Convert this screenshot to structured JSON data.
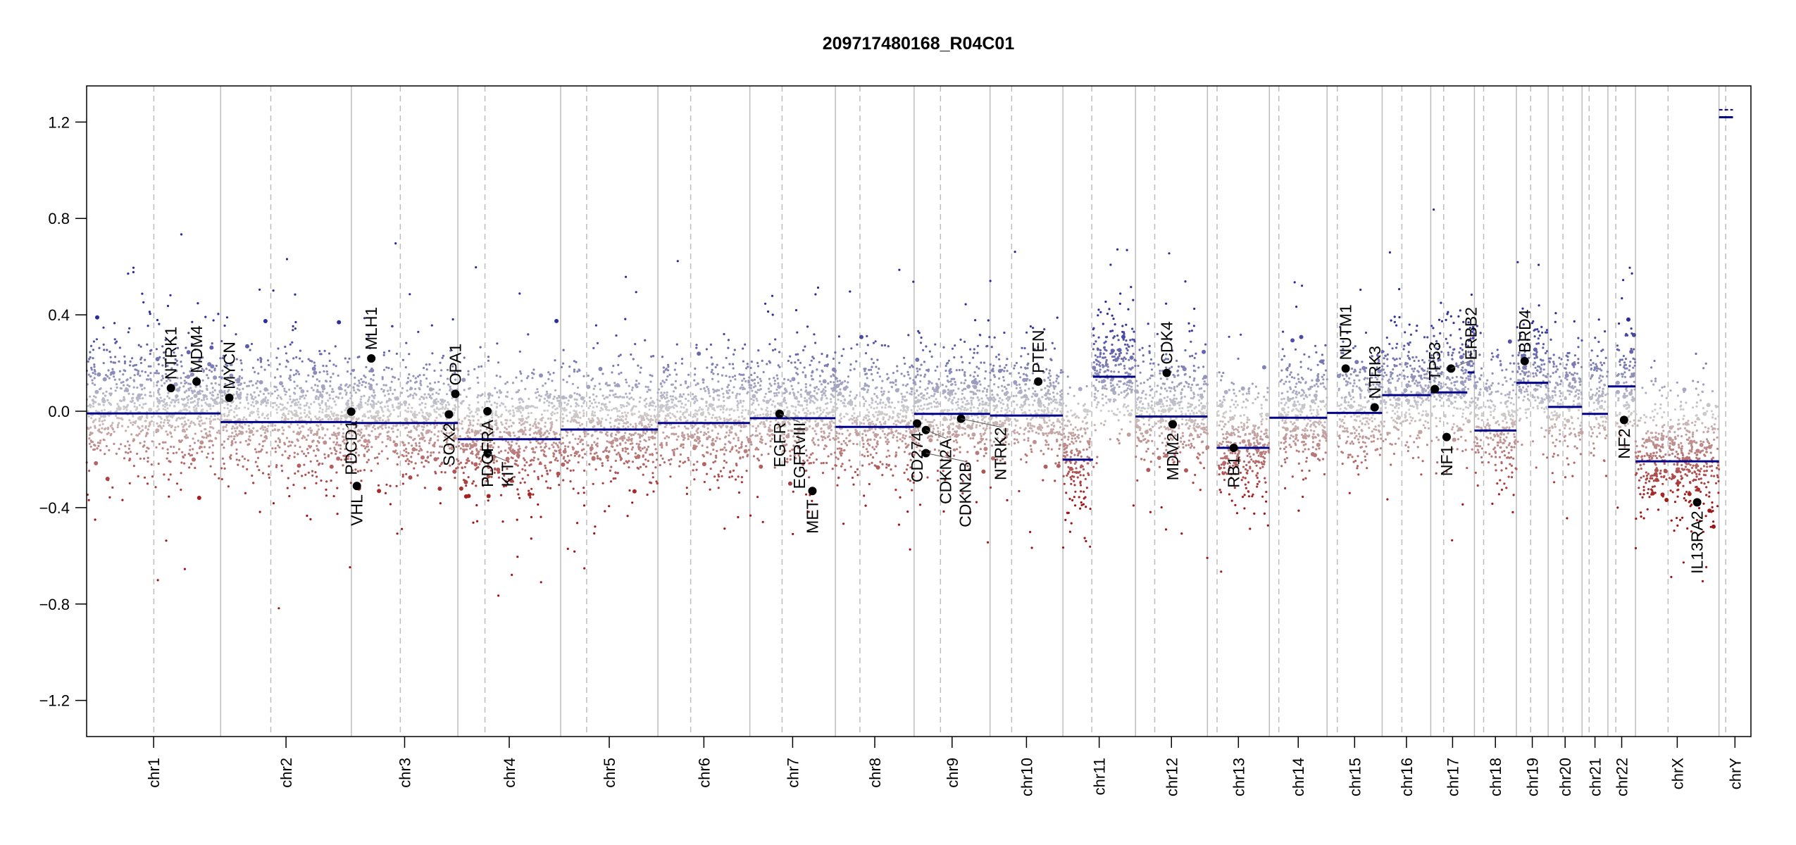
{
  "chart_data": {
    "type": "scatter",
    "title": "209717480168_R04C01",
    "xlabel": "",
    "ylabel": "",
    "ylim": [
      -1.35,
      1.35
    ],
    "y_ticks": [
      {
        "value": -1.2,
        "label": "−1.2"
      },
      {
        "value": -0.8,
        "label": "−0.8"
      },
      {
        "value": -0.4,
        "label": "−0.4"
      },
      {
        "value": 0.0,
        "label": "0.0"
      },
      {
        "value": 0.4,
        "label": "0.4"
      },
      {
        "value": 0.8,
        "label": "0.8"
      },
      {
        "value": 1.2,
        "label": "1.2"
      }
    ],
    "grid": false,
    "colors": {
      "gain": "#2a2a9c",
      "loss": "#a01414",
      "neutral": "#cfcfcf",
      "segment": "#00008b",
      "gene": "#000000",
      "chrom_line": "#bdbdbd",
      "centromere_line": "#bdbdbd"
    },
    "chromosomes": [
      {
        "name": "chr1",
        "length_mb": 249.25,
        "centromere_mb": 125.0,
        "segments": [
          {
            "start": 0,
            "end": 249.25,
            "value": -0.009
          }
        ]
      },
      {
        "name": "chr2",
        "length_mb": 243.2,
        "centromere_mb": 93.3,
        "segments": [
          {
            "start": 0,
            "end": 243.2,
            "value": -0.045
          }
        ]
      },
      {
        "name": "chr3",
        "length_mb": 198.0,
        "centromere_mb": 91.0,
        "segments": [
          {
            "start": 0,
            "end": 198.0,
            "value": -0.049
          }
        ]
      },
      {
        "name": "chr4",
        "length_mb": 191.15,
        "centromere_mb": 50.4,
        "segments": [
          {
            "start": 0,
            "end": 191.15,
            "value": -0.116
          }
        ]
      },
      {
        "name": "chr5",
        "length_mb": 180.9,
        "centromere_mb": 48.4,
        "segments": [
          {
            "start": 0,
            "end": 180.9,
            "value": -0.076
          }
        ]
      },
      {
        "name": "chr6",
        "length_mb": 171.1,
        "centromere_mb": 61.0,
        "segments": [
          {
            "start": 0,
            "end": 171.1,
            "value": -0.049
          }
        ]
      },
      {
        "name": "chr7",
        "length_mb": 159.1,
        "centromere_mb": 59.9,
        "segments": [
          {
            "start": 0,
            "end": 159.1,
            "value": -0.029
          }
        ]
      },
      {
        "name": "chr8",
        "length_mb": 146.4,
        "centromere_mb": 45.6,
        "segments": [
          {
            "start": 0,
            "end": 146.4,
            "value": -0.065
          }
        ]
      },
      {
        "name": "chr9",
        "length_mb": 141.2,
        "centromere_mb": 49.0,
        "segments": [
          {
            "start": 0,
            "end": 141.2,
            "value": -0.011
          }
        ]
      },
      {
        "name": "chr10",
        "length_mb": 135.5,
        "centromere_mb": 40.2,
        "segments": [
          {
            "start": 0,
            "end": 135.5,
            "value": -0.018
          }
        ]
      },
      {
        "name": "chr11",
        "length_mb": 135.0,
        "centromere_mb": 53.7,
        "segments": [
          {
            "start": 0,
            "end": 56,
            "value": -0.201
          },
          {
            "start": 56,
            "end": 135.0,
            "value": 0.143
          }
        ]
      },
      {
        "name": "chr12",
        "length_mb": 133.85,
        "centromere_mb": 35.8,
        "segments": [
          {
            "start": 0,
            "end": 133.85,
            "value": -0.022
          }
        ]
      },
      {
        "name": "chr13",
        "length_mb": 115.2,
        "centromere_mb": 17.9,
        "segments": [
          {
            "start": 17,
            "end": 115.2,
            "value": -0.152
          }
        ]
      },
      {
        "name": "chr14",
        "length_mb": 107.3,
        "centromere_mb": 17.6,
        "segments": [
          {
            "start": 0,
            "end": 107.3,
            "value": -0.027
          }
        ]
      },
      {
        "name": "chr15",
        "length_mb": 102.5,
        "centromere_mb": 19.0,
        "segments": [
          {
            "start": 0,
            "end": 102.5,
            "value": -0.007
          }
        ]
      },
      {
        "name": "chr16",
        "length_mb": 90.35,
        "centromere_mb": 36.6,
        "segments": [
          {
            "start": 0,
            "end": 90.35,
            "value": 0.067
          }
        ]
      },
      {
        "name": "chr17",
        "length_mb": 81.2,
        "centromere_mb": 24.0,
        "segments": [
          {
            "start": 0,
            "end": 68,
            "value": 0.078
          },
          {
            "start": 68.5,
            "end": 81.2,
            "value": 0.161
          }
        ]
      },
      {
        "name": "chr18",
        "length_mb": 78.1,
        "centromere_mb": 17.2,
        "segments": [
          {
            "start": 0,
            "end": 78.1,
            "value": -0.08
          }
        ]
      },
      {
        "name": "chr19",
        "length_mb": 59.1,
        "centromere_mb": 26.5,
        "segments": [
          {
            "start": 0,
            "end": 59.1,
            "value": 0.118
          }
        ]
      },
      {
        "name": "chr20",
        "length_mb": 63.0,
        "centromere_mb": 27.5,
        "segments": [
          {
            "start": 0,
            "end": 63.0,
            "value": 0.018
          }
        ]
      },
      {
        "name": "chr21",
        "length_mb": 48.1,
        "centromere_mb": 13.2,
        "segments": [
          {
            "start": 0,
            "end": 48.1,
            "value": -0.011
          }
        ]
      },
      {
        "name": "chr22",
        "length_mb": 51.3,
        "centromere_mb": 14.7,
        "segments": [
          {
            "start": 0,
            "end": 51.3,
            "value": 0.103
          }
        ]
      },
      {
        "name": "chrX",
        "length_mb": 155.3,
        "centromere_mb": 60.6,
        "segments": [
          {
            "start": 0,
            "end": 155.3,
            "value": -0.208
          }
        ]
      },
      {
        "name": "chrY",
        "length_mb": 59.4,
        "centromere_mb": 12.5,
        "segments": [
          {
            "start": 0,
            "end": 26,
            "value": 1.22
          },
          {
            "start": 0,
            "end": 26,
            "value": 1.251
          }
        ]
      }
    ],
    "genes": [
      {
        "name": "NTRK1",
        "chr": "chr1",
        "pos_mb": 156.8,
        "value": 0.096
      },
      {
        "name": "MDM4",
        "chr": "chr1",
        "pos_mb": 204.5,
        "value": 0.123
      },
      {
        "name": "MYCN",
        "chr": "chr2",
        "pos_mb": 16.1,
        "value": 0.056
      },
      {
        "name": "PDCD1",
        "chr": "chr2",
        "pos_mb": 242.8,
        "value": -0.002
      },
      {
        "name": "VHL",
        "chr": "chr3",
        "pos_mb": 10.2,
        "value": -0.31
      },
      {
        "name": "MLH1",
        "chr": "chr3",
        "pos_mb": 37.0,
        "value": 0.219
      },
      {
        "name": "SOX2",
        "chr": "chr3",
        "pos_mb": 181.4,
        "value": -0.013
      },
      {
        "name": "OPA1",
        "chr": "chr3",
        "pos_mb": 193.3,
        "value": 0.072
      },
      {
        "name": "PDGFRA",
        "chr": "chr4",
        "pos_mb": 55.1,
        "value": 0.0
      },
      {
        "name": "KIT",
        "chr": "chr4",
        "pos_mb": 55.5,
        "value": -0.174
      },
      {
        "name": "EGFR",
        "chr": "chr7",
        "pos_mb": 55.2,
        "value": -0.011
      },
      {
        "name": "EGFRvIII",
        "chr": "chr7",
        "pos_mb": 55.2,
        "value": -0.011
      },
      {
        "name": "MET",
        "chr": "chr7",
        "pos_mb": 116.3,
        "value": -0.331
      },
      {
        "name": "CD274",
        "chr": "chr9",
        "pos_mb": 5.5,
        "value": -0.051
      },
      {
        "name": "CDKN2A",
        "chr": "chr9",
        "pos_mb": 21.97,
        "value": -0.078
      },
      {
        "name": "CDKN2B",
        "chr": "chr9",
        "pos_mb": 22.0,
        "value": -0.174
      },
      {
        "name": "NTRK2",
        "chr": "chr9",
        "pos_mb": 87.3,
        "value": -0.031
      },
      {
        "name": "PTEN",
        "chr": "chr10",
        "pos_mb": 89.6,
        "value": 0.123
      },
      {
        "name": "CDK4",
        "chr": "chr12",
        "pos_mb": 58.1,
        "value": 0.159
      },
      {
        "name": "MDM2",
        "chr": "chr12",
        "pos_mb": 69.2,
        "value": -0.054
      },
      {
        "name": "RB1",
        "chr": "chr13",
        "pos_mb": 48.9,
        "value": -0.152
      },
      {
        "name": "NUTM1",
        "chr": "chr15",
        "pos_mb": 34.6,
        "value": 0.177
      },
      {
        "name": "NTRK3",
        "chr": "chr15",
        "pos_mb": 88.5,
        "value": 0.016
      },
      {
        "name": "TP53",
        "chr": "chr17",
        "pos_mb": 7.6,
        "value": 0.092
      },
      {
        "name": "NF1",
        "chr": "chr17",
        "pos_mb": 29.5,
        "value": -0.107
      },
      {
        "name": "ERBB2",
        "chr": "chr17",
        "pos_mb": 37.8,
        "value": 0.177
      },
      {
        "name": "BRD4",
        "chr": "chr19",
        "pos_mb": 15.4,
        "value": 0.208
      },
      {
        "name": "NF2",
        "chr": "chr22",
        "pos_mb": 30.0,
        "value": -0.036
      },
      {
        "name": "IL13RA2",
        "chr": "chrX",
        "pos_mb": 114.7,
        "value": -0.378
      }
    ]
  }
}
